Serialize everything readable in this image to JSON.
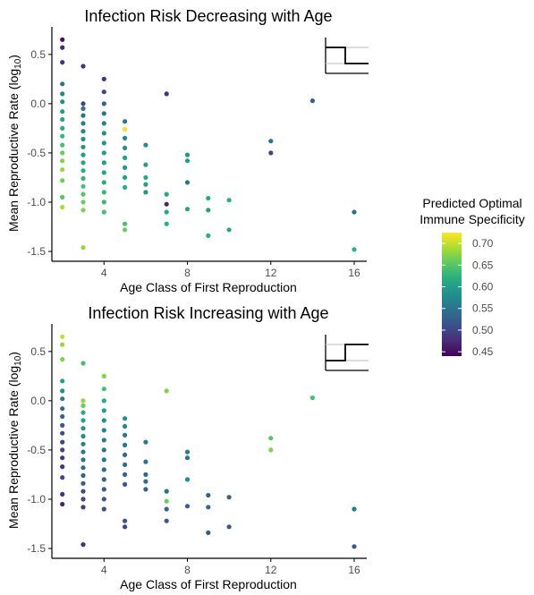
{
  "colors": {
    "viridis": [
      "#440154",
      "#472c7a",
      "#3b518b",
      "#2c718e",
      "#21908d",
      "#27ad81",
      "#5cc863",
      "#aadc32",
      "#fde725"
    ],
    "axis": "#000000",
    "tick_text": "#4d4d4d",
    "inset_grey": "#c8c8c8"
  },
  "legend": {
    "title_line1": "Predicted Optimal",
    "title_line2": "Immune Specificity",
    "ticks": [
      "0.70",
      "0.65",
      "0.60",
      "0.55",
      "0.50",
      "0.45"
    ],
    "tick_values": [
      0.7,
      0.65,
      0.6,
      0.55,
      0.5,
      0.45
    ],
    "min": 0.44,
    "max": 0.725
  },
  "chart_data": [
    {
      "type": "scatter",
      "title": "Infection Risk Decreasing with Age",
      "xlabel": "Age Class of First Reproduction",
      "ylabel": "Mean Reproductive Rate (log",
      "ylabel_sub": "10",
      "ylabel_end": ")",
      "xlim": [
        1.5,
        16.6
      ],
      "ylim": [
        -1.6,
        0.78
      ],
      "xticks": [
        4,
        8,
        12,
        16
      ],
      "xtick_labels": [
        "4",
        "8",
        "12",
        "16"
      ],
      "yticks": [
        0.5,
        0.0,
        -0.5,
        -1.0,
        -1.5
      ],
      "ytick_labels": [
        "0.5",
        "0.0",
        "-0.5",
        "-1.0",
        "-1.5"
      ],
      "inset": "decreasing",
      "points": [
        [
          2,
          0.65,
          0.45
        ],
        [
          2,
          0.57,
          0.47
        ],
        [
          2,
          0.42,
          0.48
        ],
        [
          2,
          0.2,
          0.55
        ],
        [
          2,
          0.1,
          0.57
        ],
        [
          2,
          0.02,
          0.58
        ],
        [
          2,
          -0.08,
          0.6
        ],
        [
          2,
          -0.16,
          0.61
        ],
        [
          2,
          -0.25,
          0.62
        ],
        [
          2,
          -0.33,
          0.63
        ],
        [
          2,
          -0.42,
          0.64
        ],
        [
          2,
          -0.5,
          0.66
        ],
        [
          2,
          -0.58,
          0.67
        ],
        [
          2,
          -0.67,
          0.68
        ],
        [
          2,
          -0.78,
          0.66
        ],
        [
          2,
          -0.95,
          0.65
        ],
        [
          2,
          -1.05,
          0.69
        ],
        [
          3,
          0.38,
          0.48
        ],
        [
          3,
          0.0,
          0.5
        ],
        [
          3,
          -0.05,
          0.55
        ],
        [
          3,
          -0.12,
          0.55
        ],
        [
          3,
          -0.2,
          0.56
        ],
        [
          3,
          -0.28,
          0.57
        ],
        [
          3,
          -0.36,
          0.58
        ],
        [
          3,
          -0.44,
          0.59
        ],
        [
          3,
          -0.52,
          0.6
        ],
        [
          3,
          -0.6,
          0.61
        ],
        [
          3,
          -0.68,
          0.62
        ],
        [
          3,
          -0.76,
          0.63
        ],
        [
          3,
          -0.84,
          0.64
        ],
        [
          3,
          -0.92,
          0.65
        ],
        [
          3,
          -1.0,
          0.66
        ],
        [
          3,
          -1.08,
          0.67
        ],
        [
          3,
          -1.46,
          0.68
        ],
        [
          4,
          0.25,
          0.48
        ],
        [
          4,
          0.12,
          0.5
        ],
        [
          4,
          0.0,
          0.53
        ],
        [
          4,
          -0.1,
          0.55
        ],
        [
          4,
          -0.2,
          0.57
        ],
        [
          4,
          -0.3,
          0.58
        ],
        [
          4,
          -0.4,
          0.59
        ],
        [
          4,
          -0.5,
          0.6
        ],
        [
          4,
          -0.6,
          0.6
        ],
        [
          4,
          -0.7,
          0.61
        ],
        [
          4,
          -0.8,
          0.62
        ],
        [
          4,
          -0.9,
          0.63
        ],
        [
          4,
          -1.0,
          0.63
        ],
        [
          4,
          -1.1,
          0.64
        ],
        [
          5,
          -0.18,
          0.55
        ],
        [
          5,
          -0.26,
          0.72
        ],
        [
          5,
          -0.35,
          0.57
        ],
        [
          5,
          -0.45,
          0.58
        ],
        [
          5,
          -0.55,
          0.6
        ],
        [
          5,
          -0.65,
          0.59
        ],
        [
          5,
          -0.75,
          0.6
        ],
        [
          5,
          -0.85,
          0.62
        ],
        [
          5,
          -1.22,
          0.64
        ],
        [
          5,
          -1.28,
          0.66
        ],
        [
          6,
          -0.42,
          0.58
        ],
        [
          6,
          -0.62,
          0.6
        ],
        [
          6,
          -0.75,
          0.61
        ],
        [
          6,
          -0.82,
          0.6
        ],
        [
          6,
          -0.9,
          0.59
        ],
        [
          7,
          0.1,
          0.48
        ],
        [
          7,
          -0.92,
          0.61
        ],
        [
          7,
          -1.02,
          0.47
        ],
        [
          7,
          -1.1,
          0.61
        ],
        [
          7,
          -1.22,
          0.62
        ],
        [
          8,
          -0.52,
          0.59
        ],
        [
          8,
          -0.58,
          0.6
        ],
        [
          8,
          -0.8,
          0.55
        ],
        [
          8,
          -1.07,
          0.61
        ],
        [
          9,
          -0.96,
          0.62
        ],
        [
          9,
          -1.08,
          0.6
        ],
        [
          9,
          -1.34,
          0.62
        ],
        [
          10,
          -0.98,
          0.62
        ],
        [
          10,
          -1.28,
          0.61
        ],
        [
          12,
          -0.38,
          0.55
        ],
        [
          12,
          -0.5,
          0.5
        ],
        [
          14,
          0.03,
          0.53
        ],
        [
          16,
          -1.1,
          0.55
        ],
        [
          16,
          -1.48,
          0.62
        ]
      ]
    },
    {
      "type": "scatter",
      "title": "Infection Risk Increasing with Age",
      "xlabel": "Age Class of First Reproduction",
      "ylabel": "Mean Reproductive Rate (log",
      "ylabel_sub": "10",
      "ylabel_end": ")",
      "xlim": [
        1.5,
        16.6
      ],
      "ylim": [
        -1.6,
        0.78
      ],
      "xticks": [
        4,
        8,
        12,
        16
      ],
      "xtick_labels": [
        "4",
        "8",
        "12",
        "16"
      ],
      "yticks": [
        0.5,
        0.0,
        -0.5,
        -1.0,
        -1.5
      ],
      "ytick_labels": [
        "0.5",
        "0.0",
        "-0.5",
        "-1.0",
        "-1.5"
      ],
      "inset": "increasing",
      "points": [
        [
          2,
          0.65,
          0.7
        ],
        [
          2,
          0.57,
          0.68
        ],
        [
          2,
          0.42,
          0.67
        ],
        [
          2,
          0.2,
          0.6
        ],
        [
          2,
          0.1,
          0.58
        ],
        [
          2,
          0.02,
          0.56
        ],
        [
          2,
          -0.08,
          0.54
        ],
        [
          2,
          -0.16,
          0.53
        ],
        [
          2,
          -0.25,
          0.52
        ],
        [
          2,
          -0.33,
          0.51
        ],
        [
          2,
          -0.42,
          0.5
        ],
        [
          2,
          -0.5,
          0.5
        ],
        [
          2,
          -0.58,
          0.49
        ],
        [
          2,
          -0.67,
          0.48
        ],
        [
          2,
          -0.78,
          0.5
        ],
        [
          2,
          -0.95,
          0.48
        ],
        [
          2,
          -1.05,
          0.47
        ],
        [
          3,
          0.38,
          0.64
        ],
        [
          3,
          0.0,
          0.68
        ],
        [
          3,
          -0.05,
          0.66
        ],
        [
          3,
          -0.12,
          0.62
        ],
        [
          3,
          -0.2,
          0.6
        ],
        [
          3,
          -0.28,
          0.59
        ],
        [
          3,
          -0.36,
          0.58
        ],
        [
          3,
          -0.44,
          0.57
        ],
        [
          3,
          -0.52,
          0.56
        ],
        [
          3,
          -0.6,
          0.55
        ],
        [
          3,
          -0.68,
          0.54
        ],
        [
          3,
          -0.76,
          0.53
        ],
        [
          3,
          -0.84,
          0.52
        ],
        [
          3,
          -0.92,
          0.51
        ],
        [
          3,
          -1.0,
          0.5
        ],
        [
          3,
          -1.08,
          0.49
        ],
        [
          3,
          -1.46,
          0.48
        ],
        [
          4,
          0.25,
          0.67
        ],
        [
          4,
          0.12,
          0.64
        ],
        [
          4,
          0.0,
          0.62
        ],
        [
          4,
          -0.1,
          0.6
        ],
        [
          4,
          -0.2,
          0.58
        ],
        [
          4,
          -0.3,
          0.57
        ],
        [
          4,
          -0.4,
          0.56
        ],
        [
          4,
          -0.5,
          0.55
        ],
        [
          4,
          -0.6,
          0.55
        ],
        [
          4,
          -0.7,
          0.54
        ],
        [
          4,
          -0.8,
          0.53
        ],
        [
          4,
          -0.9,
          0.52
        ],
        [
          4,
          -1.0,
          0.52
        ],
        [
          4,
          -1.1,
          0.51
        ],
        [
          5,
          -0.18,
          0.58
        ],
        [
          5,
          -0.26,
          0.57
        ],
        [
          5,
          -0.35,
          0.56
        ],
        [
          5,
          -0.45,
          0.55
        ],
        [
          5,
          -0.55,
          0.54
        ],
        [
          5,
          -0.65,
          0.54
        ],
        [
          5,
          -0.75,
          0.53
        ],
        [
          5,
          -0.85,
          0.52
        ],
        [
          5,
          -1.22,
          0.51
        ],
        [
          5,
          -1.28,
          0.5
        ],
        [
          6,
          -0.42,
          0.56
        ],
        [
          6,
          -0.62,
          0.55
        ],
        [
          6,
          -0.75,
          0.54
        ],
        [
          6,
          -0.82,
          0.54
        ],
        [
          6,
          -0.9,
          0.53
        ],
        [
          7,
          0.1,
          0.67
        ],
        [
          7,
          -0.92,
          0.54
        ],
        [
          7,
          -1.02,
          0.66
        ],
        [
          7,
          -1.1,
          0.53
        ],
        [
          7,
          -1.22,
          0.52
        ],
        [
          8,
          -0.52,
          0.56
        ],
        [
          8,
          -0.58,
          0.55
        ],
        [
          8,
          -0.8,
          0.58
        ],
        [
          8,
          -1.07,
          0.53
        ],
        [
          9,
          -0.96,
          0.53
        ],
        [
          9,
          -1.08,
          0.54
        ],
        [
          9,
          -1.34,
          0.52
        ],
        [
          10,
          -0.98,
          0.53
        ],
        [
          10,
          -1.28,
          0.52
        ],
        [
          12,
          -0.38,
          0.65
        ],
        [
          12,
          -0.5,
          0.67
        ],
        [
          14,
          0.03,
          0.64
        ],
        [
          16,
          -1.1,
          0.56
        ],
        [
          16,
          -1.48,
          0.52
        ]
      ]
    }
  ]
}
